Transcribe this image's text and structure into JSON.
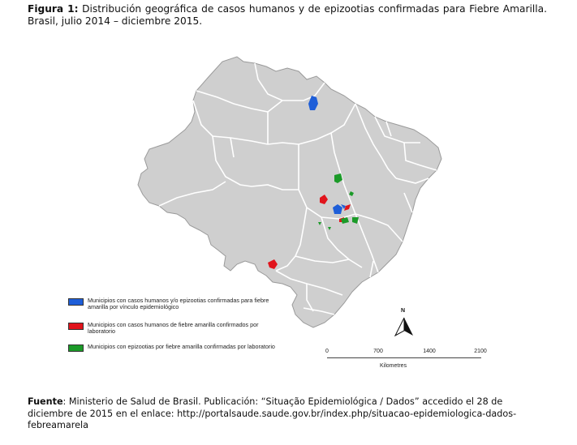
{
  "caption": {
    "label": "Figura 1:",
    "text": " Distribución geográfica de casos humanos y de epizootias confirmadas para Fiebre Amarilla. Brasil, julio 2014 – diciembre 2015."
  },
  "colors": {
    "land": "#cfcfcf",
    "border": "#ffffff",
    "outline": "#9a9a9a",
    "blue": "#1e5ed8",
    "red": "#e1141c",
    "green": "#1b9a28"
  },
  "legend": [
    {
      "color": "#1e5ed8",
      "text": "Municipios con casos humanos y/o epizootias confirmadas para fiebre amarilla por vínculo epidemiológico"
    },
    {
      "color": "#e1141c",
      "text": "Municipios con casos humanos de fiebre amarilla confirmados por laboratorio"
    },
    {
      "color": "#1b9a28",
      "text": "Municipios con epizootias por fiebre amarilla confirmadas por laboratorio"
    }
  ],
  "north_label": "N",
  "scale": {
    "ticks": [
      "0",
      "700",
      "1400",
      "2100"
    ],
    "unit": "Kilometres"
  },
  "source": {
    "label": "Fuente",
    "text": ": Ministerio de Salud de Brasil. Publicación: “Situação Epidemiológica / Dados” accedido el 28 de diciembre de 2015 en el enlace: http://portalsaude.saude.gov.br/index.php/situacao-epidemiologica-dados-febreamarela"
  }
}
